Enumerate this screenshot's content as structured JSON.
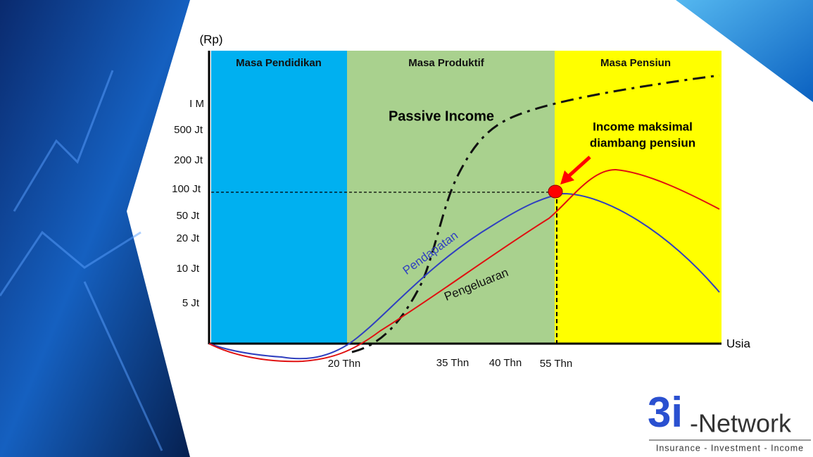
{
  "slide": {
    "y_unit": "(Rp)",
    "y_labels": [
      "I M",
      "500 Jt",
      "200 Jt",
      "100 Jt",
      "50 Jt",
      "20 Jt",
      "10 Jt",
      "5 Jt"
    ],
    "x_labels": [
      "20 Thn",
      "35 Thn",
      "40 Thn",
      "55 Thn"
    ],
    "x_axis_label": "Usia",
    "phases": [
      "Masa Pendidikan",
      "Masa Produktif",
      "Masa Pensiun"
    ],
    "passive_income": "Passive Income",
    "callout": [
      "Income maksimal",
      "diambang pensiun"
    ],
    "income_curve": "Pendapatan",
    "expense_curve": "Pengeluaran",
    "logo": {
      "mark": "3i",
      "name": "-Network",
      "tagline": "Insurance - Investment - Income"
    }
  }
}
